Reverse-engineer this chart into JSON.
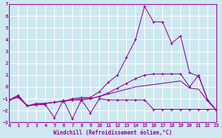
{
  "xlabel": "Windchill (Refroidissement éolien,°C)",
  "background_color": "#cde8f0",
  "grid_color": "#ffffff",
  "line_color": "#990099",
  "xlim": [
    0,
    23
  ],
  "ylim": [
    -3,
    7
  ],
  "yticks": [
    -3,
    -2,
    -1,
    0,
    1,
    2,
    3,
    4,
    5,
    6,
    7
  ],
  "xticks": [
    0,
    1,
    2,
    3,
    4,
    5,
    6,
    7,
    8,
    9,
    10,
    11,
    12,
    13,
    14,
    15,
    16,
    17,
    18,
    19,
    20,
    21,
    22,
    23
  ],
  "series": [
    {
      "points": [
        [
          0,
          -1.1
        ],
        [
          1,
          -0.8
        ],
        [
          2,
          -1.6
        ],
        [
          3,
          -1.5
        ],
        [
          4,
          -1.5
        ],
        [
          5,
          -2.6
        ],
        [
          6,
          -1.1
        ],
        [
          7,
          -2.7
        ],
        [
          8,
          -1.1
        ],
        [
          9,
          -2.2
        ],
        [
          10,
          -1.0
        ],
        [
          11,
          -1.1
        ],
        [
          12,
          -1.1
        ],
        [
          13,
          -1.1
        ],
        [
          14,
          -1.1
        ],
        [
          15,
          -1.1
        ],
        [
          16,
          -1.9
        ],
        [
          17,
          -1.9
        ],
        [
          18,
          -1.9
        ],
        [
          19,
          -1.9
        ],
        [
          20,
          -1.9
        ],
        [
          21,
          -1.9
        ],
        [
          22,
          -1.9
        ],
        [
          23,
          -1.9
        ]
      ],
      "marker": true
    },
    {
      "points": [
        [
          0,
          -1.1
        ],
        [
          1,
          -0.8
        ],
        [
          2,
          -1.6
        ],
        [
          3,
          -1.5
        ],
        [
          4,
          -1.4
        ],
        [
          5,
          -1.3
        ],
        [
          6,
          -1.2
        ],
        [
          7,
          -1.1
        ],
        [
          8,
          -1.1
        ],
        [
          9,
          -1.0
        ],
        [
          10,
          -0.8
        ],
        [
          11,
          -0.5
        ],
        [
          12,
          -0.1
        ],
        [
          13,
          0.3
        ],
        [
          14,
          0.7
        ],
        [
          15,
          1.0
        ],
        [
          16,
          1.1
        ],
        [
          17,
          1.1
        ],
        [
          18,
          1.1
        ],
        [
          19,
          1.1
        ],
        [
          20,
          0.0
        ],
        [
          21,
          1.0
        ],
        [
          22,
          -1.1
        ],
        [
          23,
          -2.0
        ]
      ],
      "marker": true
    },
    {
      "points": [
        [
          0,
          -1.1
        ],
        [
          1,
          -0.7
        ],
        [
          2,
          -1.6
        ],
        [
          3,
          -1.4
        ],
        [
          4,
          -1.4
        ],
        [
          5,
          -1.3
        ],
        [
          6,
          -1.2
        ],
        [
          7,
          -1.0
        ],
        [
          8,
          -0.9
        ],
        [
          9,
          -0.9
        ],
        [
          10,
          -0.4
        ],
        [
          11,
          0.4
        ],
        [
          12,
          1.0
        ],
        [
          13,
          2.5
        ],
        [
          14,
          4.0
        ],
        [
          15,
          6.8
        ],
        [
          16,
          5.5
        ],
        [
          17,
          5.5
        ],
        [
          18,
          3.7
        ],
        [
          19,
          4.3
        ],
        [
          20,
          1.2
        ],
        [
          21,
          0.9
        ],
        [
          22,
          -1.1
        ],
        [
          23,
          -2.0
        ]
      ],
      "marker": true
    },
    {
      "points": [
        [
          0,
          -1.1
        ],
        [
          1,
          -0.9
        ],
        [
          2,
          -1.6
        ],
        [
          3,
          -1.5
        ],
        [
          4,
          -1.4
        ],
        [
          5,
          -1.3
        ],
        [
          6,
          -1.2
        ],
        [
          7,
          -1.1
        ],
        [
          8,
          -1.0
        ],
        [
          9,
          -1.0
        ],
        [
          10,
          -0.8
        ],
        [
          11,
          -0.6
        ],
        [
          12,
          -0.4
        ],
        [
          13,
          -0.2
        ],
        [
          14,
          0.0
        ],
        [
          15,
          0.1
        ],
        [
          16,
          0.2
        ],
        [
          17,
          0.3
        ],
        [
          18,
          0.4
        ],
        [
          19,
          0.5
        ],
        [
          20,
          -0.1
        ],
        [
          21,
          -0.2
        ],
        [
          22,
          -1.2
        ],
        [
          23,
          -2.0
        ]
      ],
      "marker": false
    }
  ]
}
